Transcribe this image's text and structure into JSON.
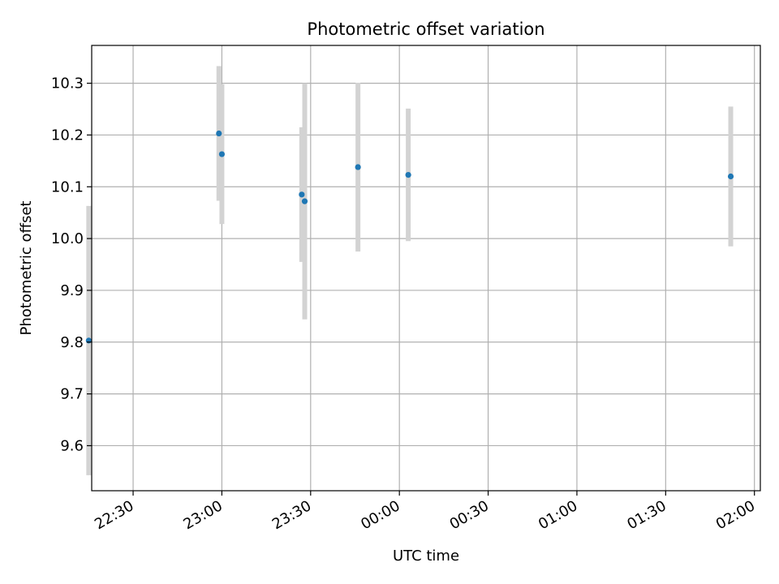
{
  "chart_data": {
    "type": "scatter",
    "title": "Photometric offset variation",
    "xlabel": "UTC time",
    "ylabel": "Photometric offset",
    "grid": true,
    "x_axis_kind": "time",
    "xlim": [
      "22:16",
      "02:02"
    ],
    "ylim": [
      9.513,
      10.373
    ],
    "x_ticks": [
      "22:30",
      "23:00",
      "23:30",
      "00:00",
      "00:30",
      "01:00",
      "01:30",
      "02:00"
    ],
    "y_ticks": [
      9.6,
      9.7,
      9.8,
      9.9,
      10.0,
      10.1,
      10.2,
      10.3
    ],
    "y_tick_labels": [
      "9.6",
      "9.7",
      "9.8",
      "9.9",
      "10.0",
      "10.1",
      "10.2",
      "10.3"
    ],
    "colors": {
      "point": "#1f77b4",
      "errorbar": "#d3d3d3",
      "grid": "#b0b0b0",
      "axes": "#000000"
    },
    "points": [
      {
        "x": "22:15",
        "y": 9.803,
        "yerr_low": 9.543,
        "yerr_high": 10.063
      },
      {
        "x": "22:59",
        "y": 10.203,
        "yerr_low": 10.073,
        "yerr_high": 10.333
      },
      {
        "x": "23:00",
        "y": 10.163,
        "yerr_low": 10.028,
        "yerr_high": 10.298
      },
      {
        "x": "23:27",
        "y": 10.085,
        "yerr_low": 9.955,
        "yerr_high": 10.215
      },
      {
        "x": "23:28",
        "y": 10.072,
        "yerr_low": 9.844,
        "yerr_high": 10.3
      },
      {
        "x": "23:46",
        "y": 10.138,
        "yerr_low": 9.975,
        "yerr_high": 10.301
      },
      {
        "x": "00:03",
        "y": 10.123,
        "yerr_low": 9.995,
        "yerr_high": 10.251
      },
      {
        "x": "01:52",
        "y": 10.12,
        "yerr_low": 9.985,
        "yerr_high": 10.255
      }
    ]
  }
}
